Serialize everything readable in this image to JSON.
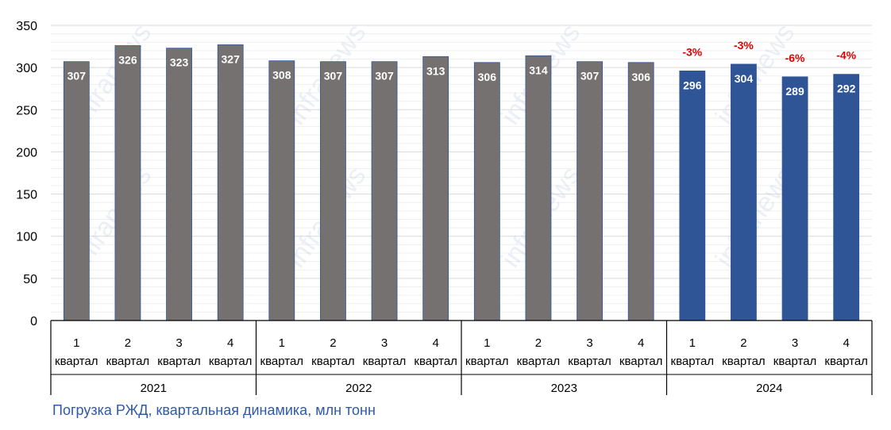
{
  "caption": "Погрузка РЖД, квартальная динамика, млн тонн",
  "watermark": "infranews",
  "chart_data": {
    "type": "bar",
    "categories": [
      "1 квартал",
      "2 квартал",
      "3 квартал",
      "4 квартал",
      "1 квартал",
      "2 квартал",
      "3 квартал",
      "4 квартал",
      "1 квартал",
      "2 квартал",
      "3 квартал",
      "4 квартал",
      "1 квартал",
      "2 квартал",
      "3 квартал",
      "4 квартал"
    ],
    "groups": [
      "2021",
      "2022",
      "2023",
      "2024"
    ],
    "values": [
      307,
      326,
      323,
      327,
      308,
      307,
      307,
      313,
      306,
      314,
      307,
      306,
      296,
      304,
      289,
      292
    ],
    "changes": [
      "",
      "",
      "",
      "",
      "",
      "",
      "",
      "",
      "",
      "",
      "",
      "",
      "-3%",
      "-3%",
      "-6%",
      "-4%"
    ],
    "ylim": [
      0,
      350
    ],
    "yticks": [
      0,
      50,
      100,
      150,
      200,
      250,
      300,
      350
    ],
    "grid": true,
    "colors": {
      "past": "#757171",
      "current": "#2f5597",
      "change": "#e00000",
      "caption": "#2e5aa7"
    }
  }
}
